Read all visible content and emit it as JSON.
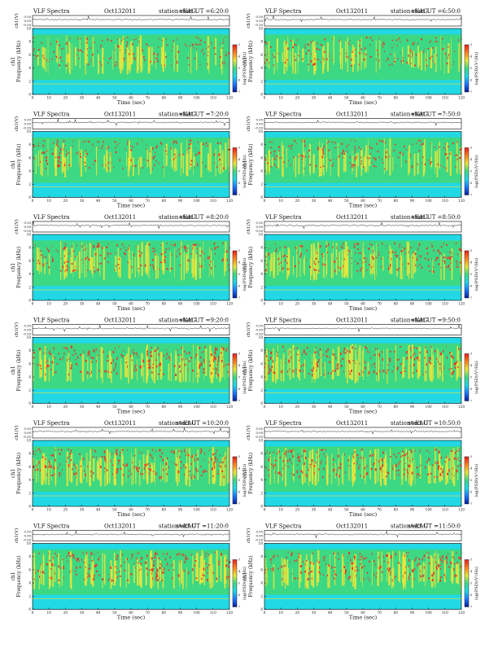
{
  "figure": {
    "title_prefix": "VLF Spectra",
    "date": "Oct132011",
    "station": "station=KAG",
    "start_prefix": "start UT =",
    "xlabel": "Time (sec)",
    "ylabel_freq": "Frequency (kHz)",
    "ylabel_top": "ch1(V)",
    "ylabel_bottom_prefix": "ch1",
    "colorbar_label": "log(PSD)(V²/Hz)",
    "colorbar_ticks": [
      "-3",
      "-4",
      "-5",
      "-6",
      "-7"
    ],
    "panel_times": [
      "6:20:0",
      "6:50:0",
      "7:20:0",
      "7:50:0",
      "8:20:0",
      "8:50:0",
      "9:20:0",
      "9:50:0",
      "10:20:0",
      "10:50:0",
      "11:20:0",
      "11:50:0"
    ]
  },
  "colors": {
    "background_cyan": "#22d8e4",
    "low_green": "#3cd884",
    "mid_yellow": "#e6e63c",
    "high_red": "#e83a28",
    "colorbar_stops": [
      "#0a1e9a",
      "#1e78ff",
      "#22d8e4",
      "#3cd884",
      "#e6e63c",
      "#ff8020",
      "#e82020"
    ]
  },
  "chart_data": {
    "type": "heatmap",
    "description_units": "spectrogram panels, 2x6 grid",
    "x_ticks": [
      0,
      10,
      20,
      30,
      40,
      50,
      60,
      70,
      80,
      90,
      100,
      110,
      120
    ],
    "xlim": [
      0,
      120
    ],
    "y_ticks_freq": [
      0,
      2,
      4,
      6,
      8,
      10
    ],
    "ylim_freq": [
      0,
      10
    ],
    "y_ticks_voltage": [
      "0.50",
      "0.00",
      "-0.50"
    ],
    "ylim_voltage": [
      -0.5,
      0.5
    ],
    "panels": [
      {
        "start": "6:20:0",
        "intensity": 0.35
      },
      {
        "start": "6:50:0",
        "intensity": 0.35
      },
      {
        "start": "7:20:0",
        "intensity": 0.4
      },
      {
        "start": "7:50:0",
        "intensity": 0.4
      },
      {
        "start": "8:20:0",
        "intensity": 0.45
      },
      {
        "start": "8:50:0",
        "intensity": 0.5
      },
      {
        "start": "9:20:0",
        "intensity": 0.6
      },
      {
        "start": "9:50:0",
        "intensity": 0.6
      },
      {
        "start": "10:20:0",
        "intensity": 0.6
      },
      {
        "start": "10:50:0",
        "intensity": 0.6
      },
      {
        "start": "11:20:0",
        "intensity": 0.55
      },
      {
        "start": "11:50:0",
        "intensity": 0.55
      }
    ]
  }
}
